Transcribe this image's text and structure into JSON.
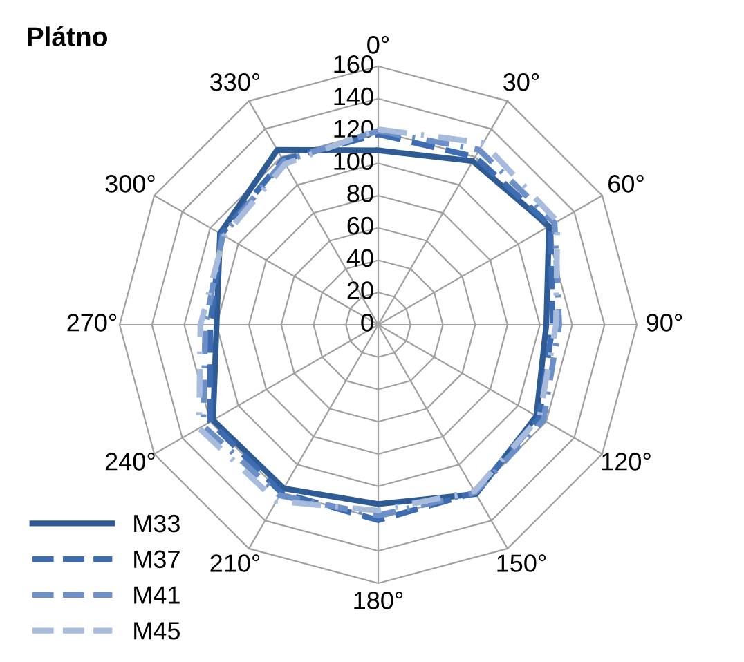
{
  "chart_data": {
    "type": "radar",
    "title": "Plátno",
    "categories": [
      "0°",
      "30°",
      "60°",
      "90°",
      "120°",
      "150°",
      "180°",
      "210°",
      "240°",
      "270°",
      "300°",
      "330°"
    ],
    "ylim": [
      0,
      160
    ],
    "yticks": [
      0,
      20,
      40,
      60,
      80,
      100,
      120,
      140,
      160
    ],
    "grid": true,
    "legend": "bottom left",
    "marker": "none",
    "series": [
      {
        "name": "M33",
        "color": "#2f5b95",
        "line_style": "solid",
        "values": [
          108,
          117,
          122,
          104,
          113,
          121,
          111,
          117,
          118,
          100,
          113,
          125
        ]
      },
      {
        "name": "M37",
        "color": "#3d6cb0",
        "line_style": "dashed",
        "values": [
          118,
          120,
          123,
          108,
          115,
          120,
          121,
          120,
          120,
          104,
          112,
          118
        ]
      },
      {
        "name": "M41",
        "color": "#6b8fc6",
        "line_style": "dashdot",
        "values": [
          120,
          125,
          126,
          112,
          118,
          120,
          118,
          122,
          125,
          107,
          111,
          117
        ]
      },
      {
        "name": "M45",
        "color": "#a7bbdc",
        "line_style": "longdashdot",
        "values": [
          121,
          130,
          128,
          110,
          115,
          119,
          115,
          126,
          128,
          110,
          110,
          115
        ]
      }
    ]
  }
}
